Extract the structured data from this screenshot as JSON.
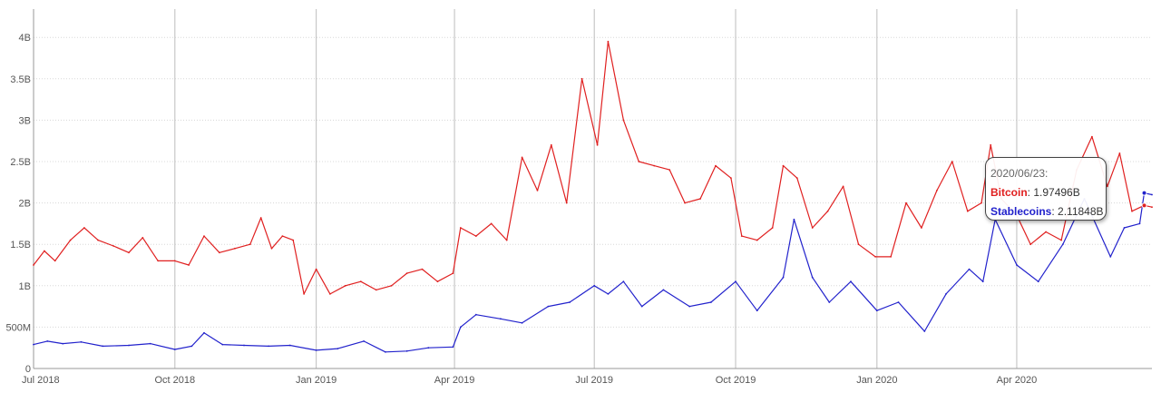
{
  "chart_data": {
    "type": "line",
    "title": "",
    "xlabel": "",
    "ylabel": "",
    "x_range": [
      "2018-07-01",
      "2020-06-28"
    ],
    "ylim": [
      0,
      4200000000
    ],
    "y_ticks": [
      {
        "value": 0,
        "label": "0"
      },
      {
        "value": 500000000,
        "label": "500M"
      },
      {
        "value": 1000000000,
        "label": "1B"
      },
      {
        "value": 1500000000,
        "label": "1.5B"
      },
      {
        "value": 2000000000,
        "label": "2B"
      },
      {
        "value": 2500000000,
        "label": "2.5B"
      },
      {
        "value": 3000000000,
        "label": "3B"
      },
      {
        "value": 3500000000,
        "label": "3.5B"
      },
      {
        "value": 4000000000,
        "label": "4B"
      }
    ],
    "x_ticks": [
      {
        "date": "2018-07-01",
        "label": "Jul 2018"
      },
      {
        "date": "2018-10-01",
        "label": "Oct 2018"
      },
      {
        "date": "2019-01-01",
        "label": "Jan 2019"
      },
      {
        "date": "2019-04-01",
        "label": "Apr 2019"
      },
      {
        "date": "2019-07-01",
        "label": "Jul 2019"
      },
      {
        "date": "2019-10-01",
        "label": "Oct 2019"
      },
      {
        "date": "2020-01-01",
        "label": "Jan 2020"
      },
      {
        "date": "2020-04-01",
        "label": "Apr 2020"
      }
    ],
    "grid": {
      "vertical": true,
      "horizontal_dotted": true
    },
    "series": [
      {
        "name": "Bitcoin",
        "color": "#e02020",
        "points": [
          [
            "2018-07-01",
            1250000000
          ],
          [
            "2018-07-08",
            1420000000
          ],
          [
            "2018-07-15",
            1300000000
          ],
          [
            "2018-07-25",
            1550000000
          ],
          [
            "2018-08-03",
            1700000000
          ],
          [
            "2018-08-12",
            1550000000
          ],
          [
            "2018-08-22",
            1480000000
          ],
          [
            "2018-09-01",
            1400000000
          ],
          [
            "2018-09-10",
            1580000000
          ],
          [
            "2018-09-20",
            1300000000
          ],
          [
            "2018-10-01",
            1300000000
          ],
          [
            "2018-10-10",
            1250000000
          ],
          [
            "2018-10-20",
            1600000000
          ],
          [
            "2018-10-30",
            1400000000
          ],
          [
            "2018-11-09",
            1450000000
          ],
          [
            "2018-11-19",
            1500000000
          ],
          [
            "2018-11-26",
            1820000000
          ],
          [
            "2018-12-03",
            1450000000
          ],
          [
            "2018-12-10",
            1600000000
          ],
          [
            "2018-12-17",
            1550000000
          ],
          [
            "2018-12-24",
            900000000
          ],
          [
            "2019-01-01",
            1200000000
          ],
          [
            "2019-01-10",
            900000000
          ],
          [
            "2019-01-20",
            1000000000
          ],
          [
            "2019-01-30",
            1050000000
          ],
          [
            "2019-02-09",
            950000000
          ],
          [
            "2019-02-19",
            1000000000
          ],
          [
            "2019-03-01",
            1150000000
          ],
          [
            "2019-03-11",
            1200000000
          ],
          [
            "2019-03-21",
            1050000000
          ],
          [
            "2019-03-31",
            1150000000
          ],
          [
            "2019-04-05",
            1700000000
          ],
          [
            "2019-04-15",
            1600000000
          ],
          [
            "2019-04-25",
            1750000000
          ],
          [
            "2019-05-05",
            1550000000
          ],
          [
            "2019-05-15",
            2550000000
          ],
          [
            "2019-05-25",
            2150000000
          ],
          [
            "2019-06-03",
            2700000000
          ],
          [
            "2019-06-13",
            2000000000
          ],
          [
            "2019-06-23",
            3500000000
          ],
          [
            "2019-07-03",
            2700000000
          ],
          [
            "2019-07-10",
            3950000000
          ],
          [
            "2019-07-20",
            3000000000
          ],
          [
            "2019-07-30",
            2500000000
          ],
          [
            "2019-08-09",
            2450000000
          ],
          [
            "2019-08-19",
            2400000000
          ],
          [
            "2019-08-29",
            2000000000
          ],
          [
            "2019-09-08",
            2050000000
          ],
          [
            "2019-09-18",
            2450000000
          ],
          [
            "2019-09-28",
            2300000000
          ],
          [
            "2019-10-05",
            1600000000
          ],
          [
            "2019-10-15",
            1550000000
          ],
          [
            "2019-10-25",
            1700000000
          ],
          [
            "2019-11-01",
            2450000000
          ],
          [
            "2019-11-10",
            2300000000
          ],
          [
            "2019-11-20",
            1700000000
          ],
          [
            "2019-11-30",
            1900000000
          ],
          [
            "2019-12-10",
            2200000000
          ],
          [
            "2019-12-20",
            1500000000
          ],
          [
            "2019-12-31",
            1350000000
          ],
          [
            "2020-01-10",
            1350000000
          ],
          [
            "2020-01-20",
            2000000000
          ],
          [
            "2020-01-30",
            1700000000
          ],
          [
            "2020-02-09",
            2150000000
          ],
          [
            "2020-02-19",
            2500000000
          ],
          [
            "2020-02-29",
            1900000000
          ],
          [
            "2020-03-09",
            2000000000
          ],
          [
            "2020-03-15",
            2700000000
          ],
          [
            "2020-03-22",
            2050000000
          ],
          [
            "2020-04-01",
            1850000000
          ],
          [
            "2020-04-10",
            1500000000
          ],
          [
            "2020-04-20",
            1650000000
          ],
          [
            "2020-04-30",
            1550000000
          ],
          [
            "2020-05-10",
            2400000000
          ],
          [
            "2020-05-20",
            2800000000
          ],
          [
            "2020-05-30",
            2200000000
          ],
          [
            "2020-06-07",
            2600000000
          ],
          [
            "2020-06-15",
            1900000000
          ],
          [
            "2020-06-23",
            1970000000
          ],
          [
            "2020-06-28",
            1950000000
          ]
        ]
      },
      {
        "name": "Stablecoins",
        "color": "#2222cc",
        "points": [
          [
            "2018-07-01",
            290000000
          ],
          [
            "2018-07-10",
            330000000
          ],
          [
            "2018-07-20",
            300000000
          ],
          [
            "2018-08-01",
            320000000
          ],
          [
            "2018-08-15",
            270000000
          ],
          [
            "2018-09-01",
            280000000
          ],
          [
            "2018-09-15",
            300000000
          ],
          [
            "2018-10-01",
            230000000
          ],
          [
            "2018-10-12",
            270000000
          ],
          [
            "2018-10-20",
            430000000
          ],
          [
            "2018-11-01",
            290000000
          ],
          [
            "2018-11-15",
            280000000
          ],
          [
            "2018-12-01",
            270000000
          ],
          [
            "2018-12-15",
            280000000
          ],
          [
            "2019-01-01",
            220000000
          ],
          [
            "2019-01-15",
            240000000
          ],
          [
            "2019-02-01",
            330000000
          ],
          [
            "2019-02-15",
            200000000
          ],
          [
            "2019-03-01",
            210000000
          ],
          [
            "2019-03-15",
            250000000
          ],
          [
            "2019-03-31",
            260000000
          ],
          [
            "2019-04-05",
            500000000
          ],
          [
            "2019-04-15",
            650000000
          ],
          [
            "2019-05-01",
            600000000
          ],
          [
            "2019-05-15",
            550000000
          ],
          [
            "2019-06-01",
            750000000
          ],
          [
            "2019-06-15",
            800000000
          ],
          [
            "2019-07-01",
            1000000000
          ],
          [
            "2019-07-10",
            900000000
          ],
          [
            "2019-07-20",
            1050000000
          ],
          [
            "2019-08-01",
            750000000
          ],
          [
            "2019-08-15",
            950000000
          ],
          [
            "2019-09-01",
            750000000
          ],
          [
            "2019-09-15",
            800000000
          ],
          [
            "2019-10-01",
            1050000000
          ],
          [
            "2019-10-15",
            700000000
          ],
          [
            "2019-11-01",
            1100000000
          ],
          [
            "2019-11-08",
            1800000000
          ],
          [
            "2019-11-20",
            1100000000
          ],
          [
            "2019-12-01",
            800000000
          ],
          [
            "2019-12-15",
            1050000000
          ],
          [
            "2020-01-01",
            700000000
          ],
          [
            "2020-01-15",
            800000000
          ],
          [
            "2020-02-01",
            450000000
          ],
          [
            "2020-02-15",
            900000000
          ],
          [
            "2020-03-01",
            1200000000
          ],
          [
            "2020-03-10",
            1050000000
          ],
          [
            "2020-03-18",
            1800000000
          ],
          [
            "2020-04-01",
            1250000000
          ],
          [
            "2020-04-15",
            1050000000
          ],
          [
            "2020-05-01",
            1500000000
          ],
          [
            "2020-05-15",
            2050000000
          ],
          [
            "2020-06-01",
            1350000000
          ],
          [
            "2020-06-10",
            1700000000
          ],
          [
            "2020-06-20",
            1750000000
          ],
          [
            "2020-06-23",
            2120000000
          ],
          [
            "2020-06-28",
            2100000000
          ]
        ]
      }
    ],
    "tooltip": {
      "date": "2020/06/23:",
      "rows": [
        {
          "name": "Bitcoin",
          "value": "1.97496B"
        },
        {
          "name": "Stablecoins",
          "value": "2.11848B"
        }
      ]
    }
  }
}
